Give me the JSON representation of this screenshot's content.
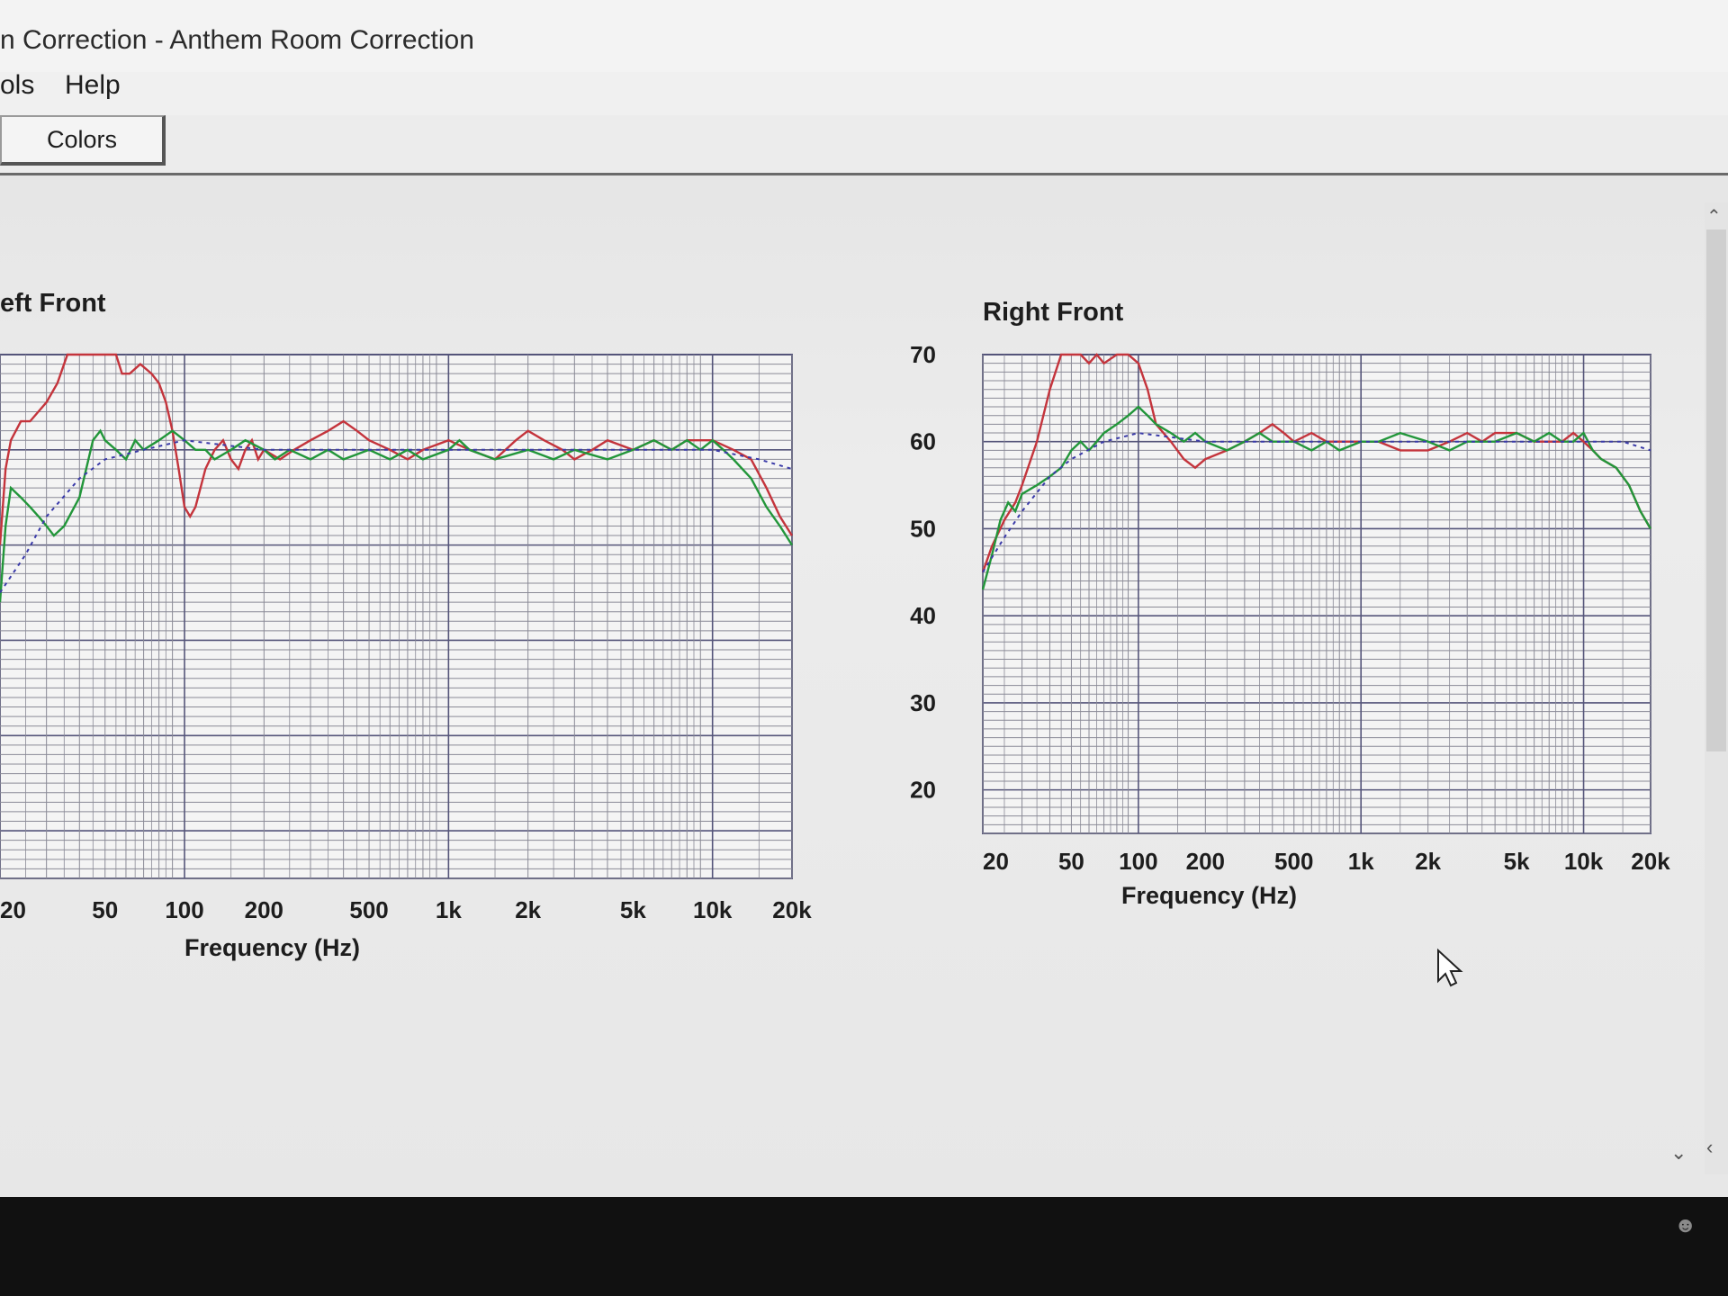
{
  "window": {
    "title": "n Correction - Anthem Room Correction",
    "menu": [
      "ols",
      "Help"
    ],
    "toolbar": {
      "colors_label": "Colors"
    }
  },
  "colors": {
    "measured": "#c4343c",
    "corrected": "#22963a",
    "target": "#3a3aa8",
    "grid_major": "#55557a",
    "grid_minor": "#8a8a96"
  },
  "icons": {
    "cursor": "mouse-pointer-icon",
    "scroll_up": "chevron-up-icon",
    "scroll_down": "chevron-down-icon",
    "scroll_left": "chevron-left-icon",
    "taskbar": "people-icon"
  },
  "chart_data": [
    {
      "type": "line",
      "title": "eft Front",
      "xlabel": "Frequency (Hz)",
      "xscale": "log",
      "xlim": [
        20,
        20000
      ],
      "ylim": [
        15,
        70
      ],
      "xticks": [
        {
          "v": 20,
          "label": "20"
        },
        {
          "v": 50,
          "label": "50"
        },
        {
          "v": 100,
          "label": "100"
        },
        {
          "v": 200,
          "label": "200"
        },
        {
          "v": 500,
          "label": "500"
        },
        {
          "v": 1000,
          "label": "1k"
        },
        {
          "v": 2000,
          "label": "2k"
        },
        {
          "v": 5000,
          "label": "5k"
        },
        {
          "v": 10000,
          "label": "10k"
        },
        {
          "v": 20000,
          "label": "20k"
        }
      ],
      "grid": true,
      "series": [
        {
          "key": "measured",
          "points": [
            [
              20,
              50
            ],
            [
              21,
              58
            ],
            [
              22,
              61
            ],
            [
              24,
              63
            ],
            [
              26,
              63
            ],
            [
              30,
              65
            ],
            [
              33,
              67
            ],
            [
              36,
              70
            ],
            [
              40,
              70
            ],
            [
              45,
              70
            ],
            [
              50,
              70
            ],
            [
              55,
              70
            ],
            [
              58,
              68
            ],
            [
              62,
              68
            ],
            [
              68,
              69
            ],
            [
              75,
              68
            ],
            [
              80,
              67
            ],
            [
              85,
              65
            ],
            [
              90,
              62
            ],
            [
              95,
              58
            ],
            [
              100,
              54
            ],
            [
              105,
              53
            ],
            [
              110,
              54
            ],
            [
              120,
              58
            ],
            [
              130,
              60
            ],
            [
              140,
              61
            ],
            [
              150,
              59
            ],
            [
              160,
              58
            ],
            [
              170,
              60
            ],
            [
              180,
              61
            ],
            [
              190,
              59
            ],
            [
              200,
              60
            ],
            [
              230,
              59
            ],
            [
              260,
              60
            ],
            [
              300,
              61
            ],
            [
              350,
              62
            ],
            [
              400,
              63
            ],
            [
              450,
              62
            ],
            [
              500,
              61
            ],
            [
              600,
              60
            ],
            [
              700,
              59
            ],
            [
              800,
              60
            ],
            [
              1000,
              61
            ],
            [
              1200,
              60
            ],
            [
              1500,
              59
            ],
            [
              1800,
              61
            ],
            [
              2000,
              62
            ],
            [
              2300,
              61
            ],
            [
              2700,
              60
            ],
            [
              3000,
              59
            ],
            [
              3500,
              60
            ],
            [
              4000,
              61
            ],
            [
              5000,
              60
            ],
            [
              6000,
              61
            ],
            [
              7000,
              60
            ],
            [
              8000,
              61
            ],
            [
              9000,
              61
            ],
            [
              10000,
              61
            ],
            [
              12000,
              60
            ],
            [
              14000,
              59
            ],
            [
              16000,
              56
            ],
            [
              18000,
              53
            ],
            [
              20000,
              51
            ]
          ]
        },
        {
          "key": "corrected",
          "points": [
            [
              20,
              44
            ],
            [
              21,
              52
            ],
            [
              22,
              56
            ],
            [
              24,
              55
            ],
            [
              26,
              54
            ],
            [
              28,
              53
            ],
            [
              30,
              52
            ],
            [
              32,
              51
            ],
            [
              35,
              52
            ],
            [
              40,
              55
            ],
            [
              45,
              61
            ],
            [
              48,
              62
            ],
            [
              50,
              61
            ],
            [
              55,
              60
            ],
            [
              60,
              59
            ],
            [
              65,
              61
            ],
            [
              70,
              60
            ],
            [
              80,
              61
            ],
            [
              90,
              62
            ],
            [
              100,
              61
            ],
            [
              110,
              60
            ],
            [
              120,
              60
            ],
            [
              130,
              59
            ],
            [
              150,
              60
            ],
            [
              170,
              61
            ],
            [
              200,
              60
            ],
            [
              220,
              59
            ],
            [
              250,
              60
            ],
            [
              300,
              59
            ],
            [
              350,
              60
            ],
            [
              400,
              59
            ],
            [
              500,
              60
            ],
            [
              600,
              59
            ],
            [
              700,
              60
            ],
            [
              800,
              59
            ],
            [
              1000,
              60
            ],
            [
              1100,
              61
            ],
            [
              1200,
              60
            ],
            [
              1500,
              59
            ],
            [
              2000,
              60
            ],
            [
              2500,
              59
            ],
            [
              3000,
              60
            ],
            [
              4000,
              59
            ],
            [
              5000,
              60
            ],
            [
              6000,
              61
            ],
            [
              7000,
              60
            ],
            [
              8000,
              61
            ],
            [
              9000,
              60
            ],
            [
              10000,
              61
            ],
            [
              11000,
              60
            ],
            [
              12000,
              59
            ],
            [
              14000,
              57
            ],
            [
              16000,
              54
            ],
            [
              18000,
              52
            ],
            [
              20000,
              50
            ]
          ]
        },
        {
          "key": "target",
          "points": [
            [
              20,
              45
            ],
            [
              25,
              49
            ],
            [
              30,
              53
            ],
            [
              40,
              57
            ],
            [
              50,
              59
            ],
            [
              70,
              60
            ],
            [
              100,
              61
            ],
            [
              200,
              60
            ],
            [
              500,
              60
            ],
            [
              1000,
              60
            ],
            [
              2000,
              60
            ],
            [
              5000,
              60
            ],
            [
              10000,
              60
            ],
            [
              15000,
              59
            ],
            [
              20000,
              58
            ]
          ]
        }
      ]
    },
    {
      "type": "line",
      "title": "Right Front",
      "xlabel": "Frequency (Hz)",
      "xscale": "log",
      "xlim": [
        20,
        20000
      ],
      "ylim": [
        15,
        70
      ],
      "yticks": [
        70,
        60,
        50,
        40,
        30,
        20
      ],
      "xticks": [
        {
          "v": 20,
          "label": "20"
        },
        {
          "v": 50,
          "label": "50"
        },
        {
          "v": 100,
          "label": "100"
        },
        {
          "v": 200,
          "label": "200"
        },
        {
          "v": 500,
          "label": "500"
        },
        {
          "v": 1000,
          "label": "1k"
        },
        {
          "v": 2000,
          "label": "2k"
        },
        {
          "v": 5000,
          "label": "5k"
        },
        {
          "v": 10000,
          "label": "10k"
        },
        {
          "v": 20000,
          "label": "20k"
        }
      ],
      "grid": true,
      "series": [
        {
          "key": "measured",
          "points": [
            [
              20,
              45
            ],
            [
              22,
              48
            ],
            [
              25,
              51
            ],
            [
              28,
              53
            ],
            [
              30,
              55
            ],
            [
              35,
              60
            ],
            [
              40,
              66
            ],
            [
              45,
              70
            ],
            [
              50,
              70
            ],
            [
              55,
              70
            ],
            [
              60,
              69
            ],
            [
              65,
              70
            ],
            [
              70,
              69
            ],
            [
              80,
              70
            ],
            [
              90,
              70
            ],
            [
              100,
              69
            ],
            [
              110,
              66
            ],
            [
              120,
              62
            ],
            [
              140,
              60
            ],
            [
              160,
              58
            ],
            [
              180,
              57
            ],
            [
              200,
              58
            ],
            [
              250,
              59
            ],
            [
              300,
              60
            ],
            [
              350,
              61
            ],
            [
              400,
              62
            ],
            [
              450,
              61
            ],
            [
              500,
              60
            ],
            [
              600,
              61
            ],
            [
              700,
              60
            ],
            [
              800,
              60
            ],
            [
              1000,
              60
            ],
            [
              1200,
              60
            ],
            [
              1500,
              59
            ],
            [
              2000,
              59
            ],
            [
              2500,
              60
            ],
            [
              3000,
              61
            ],
            [
              3500,
              60
            ],
            [
              4000,
              61
            ],
            [
              5000,
              61
            ],
            [
              6000,
              60
            ],
            [
              7000,
              60
            ],
            [
              8000,
              60
            ],
            [
              9000,
              61
            ],
            [
              10000,
              60
            ],
            [
              11000,
              59
            ],
            [
              12000,
              58
            ],
            [
              14000,
              57
            ],
            [
              16000,
              55
            ],
            [
              18000,
              52
            ],
            [
              20000,
              50
            ]
          ]
        },
        {
          "key": "corrected",
          "points": [
            [
              20,
              43
            ],
            [
              22,
              47
            ],
            [
              24,
              51
            ],
            [
              26,
              53
            ],
            [
              28,
              52
            ],
            [
              30,
              54
            ],
            [
              35,
              55
            ],
            [
              40,
              56
            ],
            [
              45,
              57
            ],
            [
              50,
              59
            ],
            [
              55,
              60
            ],
            [
              60,
              59
            ],
            [
              65,
              60
            ],
            [
              70,
              61
            ],
            [
              80,
              62
            ],
            [
              90,
              63
            ],
            [
              100,
              64
            ],
            [
              110,
              63
            ],
            [
              120,
              62
            ],
            [
              140,
              61
            ],
            [
              160,
              60
            ],
            [
              180,
              61
            ],
            [
              200,
              60
            ],
            [
              250,
              59
            ],
            [
              300,
              60
            ],
            [
              350,
              61
            ],
            [
              400,
              60
            ],
            [
              500,
              60
            ],
            [
              600,
              59
            ],
            [
              700,
              60
            ],
            [
              800,
              59
            ],
            [
              1000,
              60
            ],
            [
              1200,
              60
            ],
            [
              1500,
              61
            ],
            [
              2000,
              60
            ],
            [
              2500,
              59
            ],
            [
              3000,
              60
            ],
            [
              4000,
              60
            ],
            [
              5000,
              61
            ],
            [
              6000,
              60
            ],
            [
              7000,
              61
            ],
            [
              8000,
              60
            ],
            [
              9000,
              60
            ],
            [
              10000,
              61
            ],
            [
              11000,
              59
            ],
            [
              12000,
              58
            ],
            [
              14000,
              57
            ],
            [
              16000,
              55
            ],
            [
              18000,
              52
            ],
            [
              20000,
              50
            ]
          ]
        },
        {
          "key": "target",
          "points": [
            [
              20,
              45
            ],
            [
              25,
              49
            ],
            [
              30,
              52
            ],
            [
              40,
              56
            ],
            [
              50,
              58
            ],
            [
              70,
              60
            ],
            [
              100,
              61
            ],
            [
              200,
              60
            ],
            [
              500,
              60
            ],
            [
              1000,
              60
            ],
            [
              2000,
              60
            ],
            [
              5000,
              60
            ],
            [
              10000,
              60
            ],
            [
              15000,
              60
            ],
            [
              20000,
              59
            ]
          ]
        }
      ]
    }
  ]
}
